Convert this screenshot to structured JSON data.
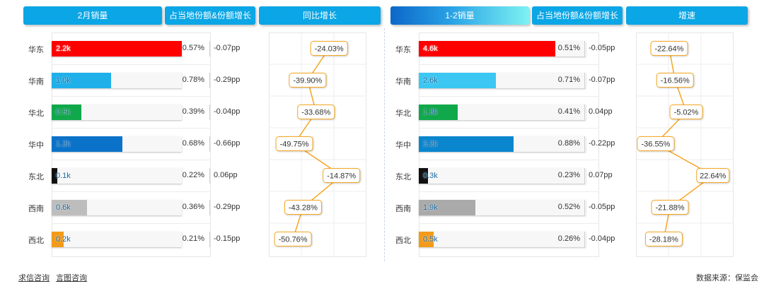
{
  "headers": {
    "left_sales": "2月销量",
    "left_share": "占当地份额&份额增长",
    "left_yoy": "同比增长",
    "right_sales": "1-2销量",
    "right_share": "占当地份额&份额增长",
    "right_growth": "增速"
  },
  "colors": {
    "header_blue": "#0aa6e6",
    "line": "#f5a623",
    "bars": [
      "#ff0000",
      "#1fb0ea",
      "#10a84a",
      "#0a72c8",
      "#111111",
      "#bdbdbd",
      "#f39a1a"
    ],
    "bars_right": [
      "#ff0000",
      "#3cc7f2",
      "#10a84a",
      "#0a86cf",
      "#111111",
      "#aaaaaa",
      "#f39a1a"
    ]
  },
  "chart_data": [
    {
      "type": "bar",
      "categories": [
        "华东",
        "华南",
        "华北",
        "华中",
        "东北",
        "西南",
        "西北"
      ],
      "values": [
        2.2,
        1.0,
        0.5,
        1.2,
        0.1,
        0.6,
        0.2
      ],
      "value_labels": [
        "2.2k",
        "1.0k",
        "0.5k",
        "1.2k",
        "0.1k",
        "0.6k",
        "0.2k"
      ],
      "unit": "k",
      "share": [
        "0.57%",
        "0.78%",
        "0.39%",
        "0.68%",
        "0.22%",
        "0.36%",
        "0.21%"
      ],
      "share_change": [
        "-0.07pp",
        "-0.29pp",
        "-0.04pp",
        "-0.66pp",
        "0.06pp",
        "-0.29pp",
        "-0.15pp"
      ],
      "growth": [
        -24.03,
        -39.9,
        -33.68,
        -49.75,
        -14.87,
        -43.28,
        -50.76
      ],
      "growth_labels": [
        "-24.03%",
        "-39.90%",
        "-33.68%",
        "-49.75%",
        "-14.87%",
        "-43.28%",
        "-50.76%"
      ],
      "growth_range": [
        -55,
        -10
      ]
    },
    {
      "type": "bar",
      "categories": [
        "华东",
        "华南",
        "华北",
        "华中",
        "东北",
        "西南",
        "西北"
      ],
      "values": [
        4.6,
        2.6,
        1.3,
        3.2,
        0.3,
        1.9,
        0.5
      ],
      "value_labels": [
        "4.6k",
        "2.6k",
        "1.3k",
        "3.2k",
        "0.3k",
        "1.9k",
        "0.5k"
      ],
      "unit": "k",
      "share": [
        "0.51%",
        "0.71%",
        "0.41%",
        "0.88%",
        "0.23%",
        "0.52%",
        "0.26%"
      ],
      "share_change": [
        "-0.05pp",
        "-0.07pp",
        "0.04pp",
        "-0.22pp",
        "0.07pp",
        "-0.05pp",
        "-0.04pp"
      ],
      "growth": [
        -22.64,
        -16.56,
        -5.02,
        -36.55,
        22.64,
        -21.88,
        -28.18
      ],
      "growth_labels": [
        "-22.64%",
        "-16.56%",
        "-5.02%",
        "-36.55%",
        "22.64%",
        "-21.88%",
        "-28.18%"
      ],
      "growth_range": [
        -38,
        25
      ]
    }
  ],
  "footer": {
    "link1": "求信咨询",
    "link2": "言图咨询",
    "source": "数据来源：保监会"
  }
}
